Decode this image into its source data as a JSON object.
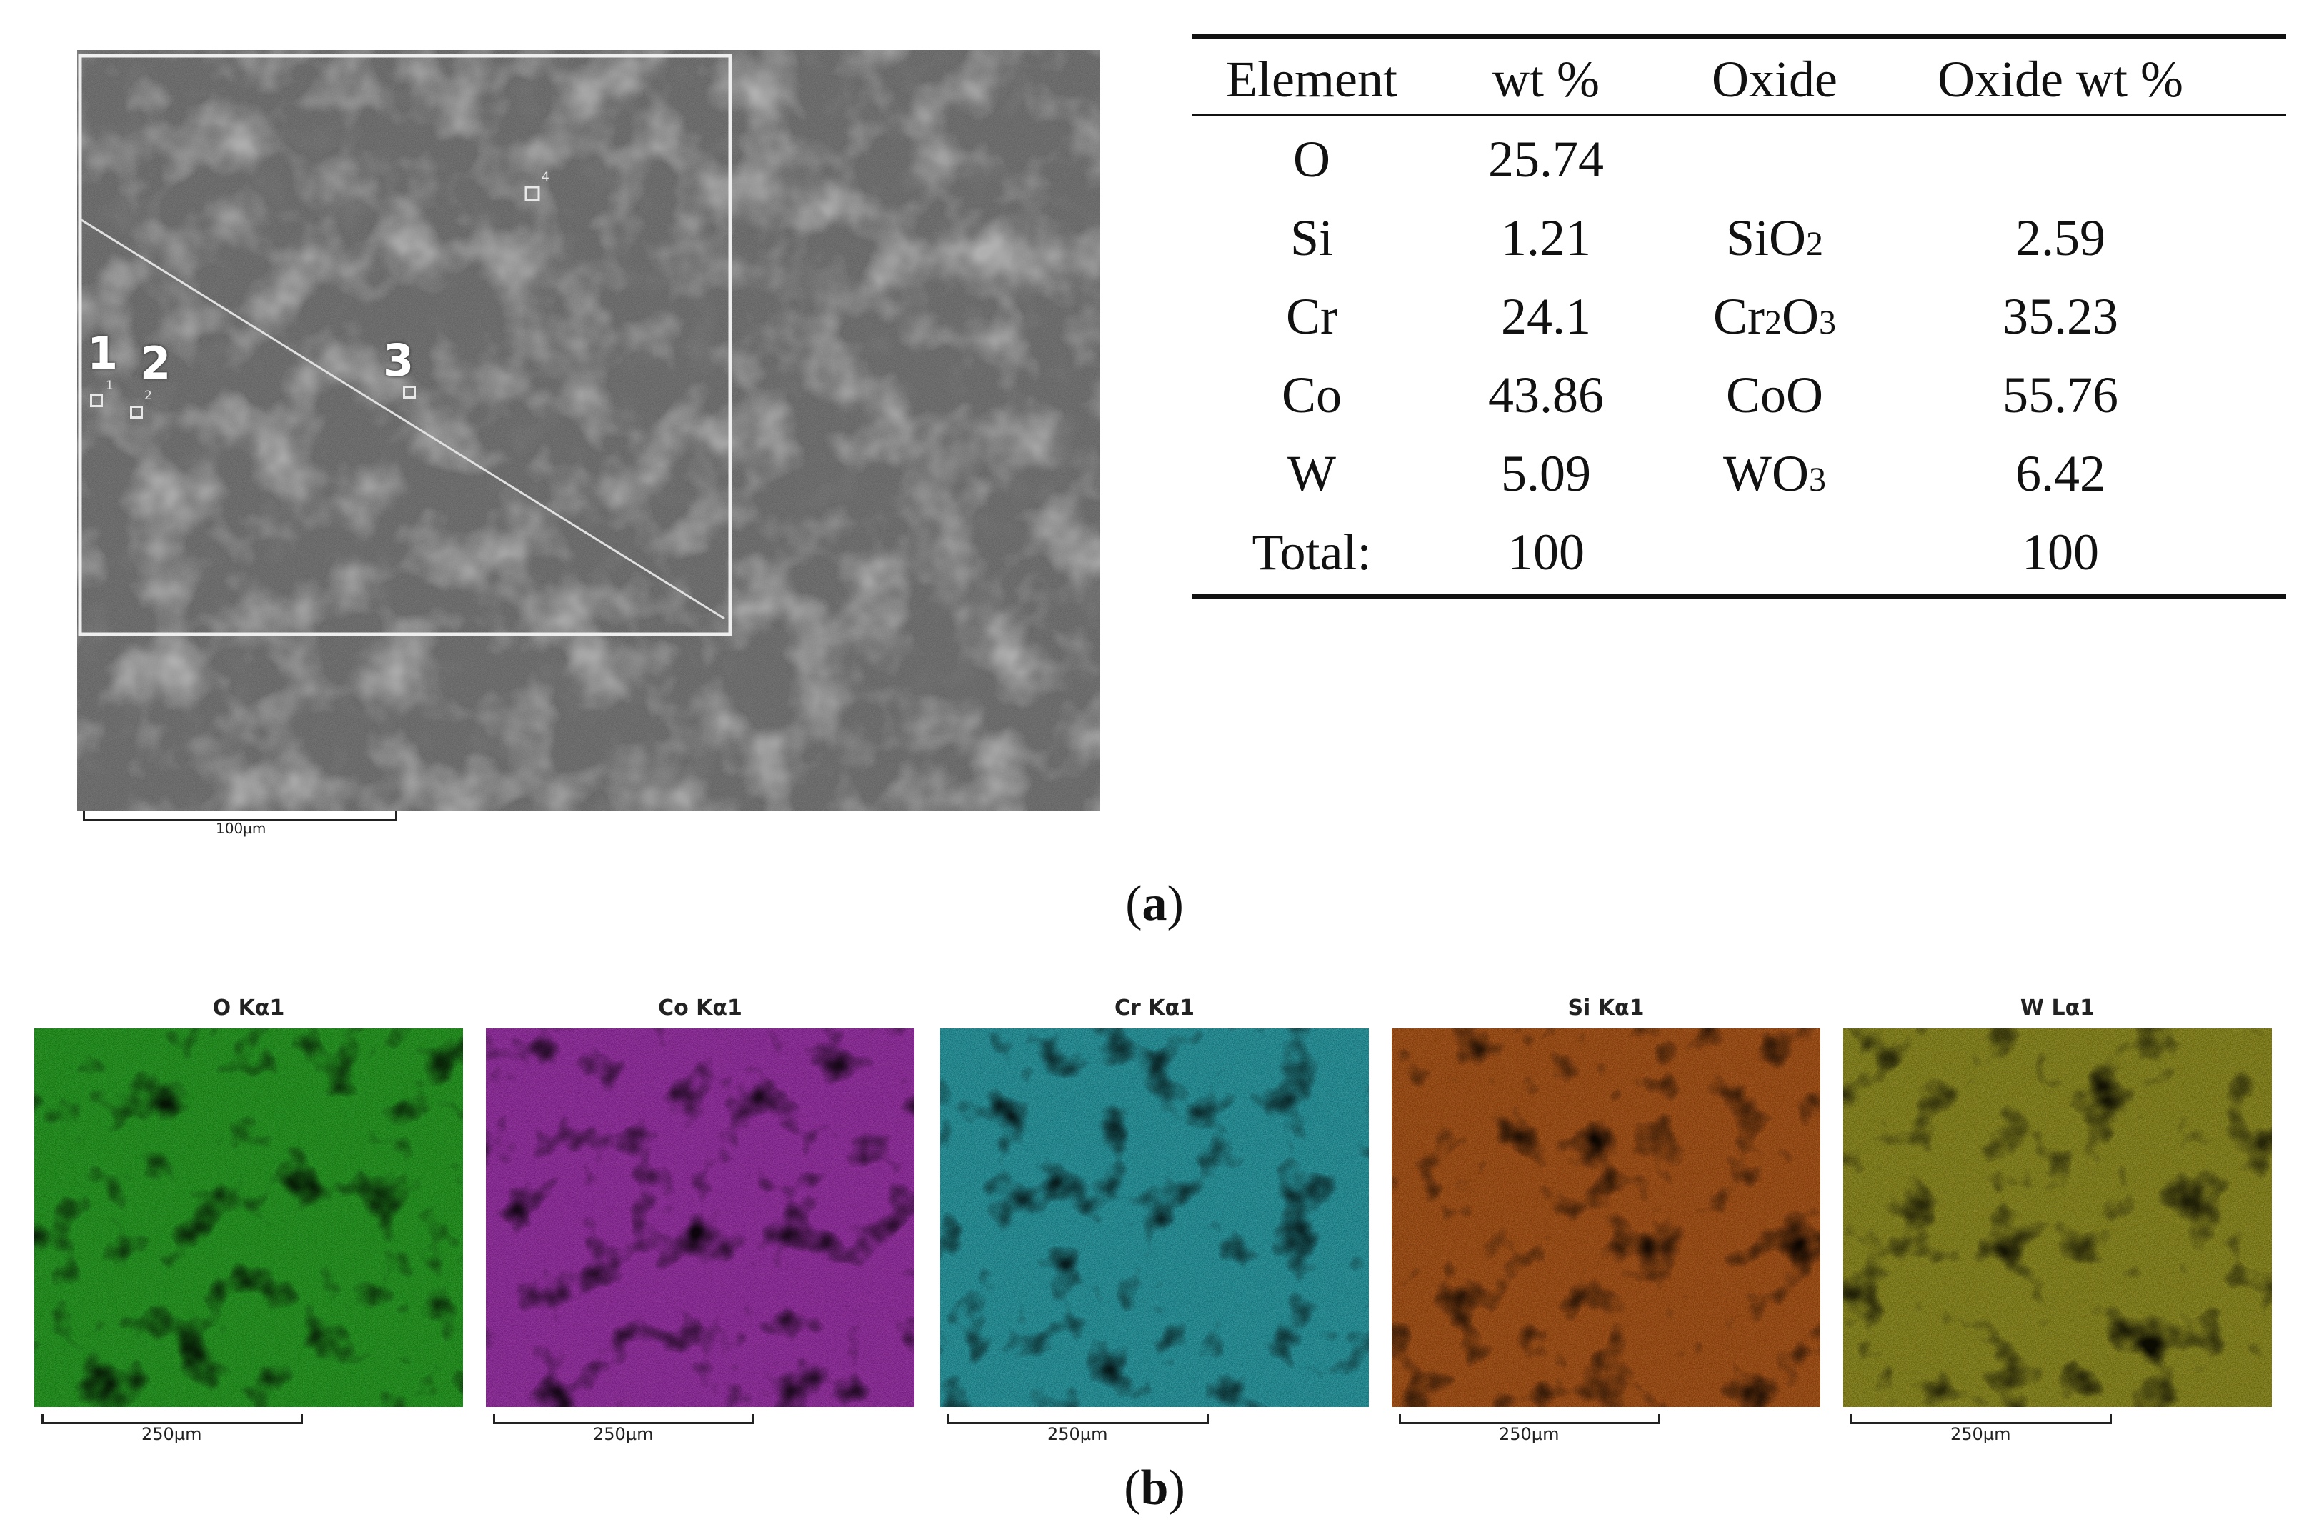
{
  "panel_a": {
    "caption_label": "a",
    "sem_image": {
      "point_labels": [
        "1",
        "2",
        "3"
      ],
      "point_box_numbers": [
        "1",
        "2",
        "4"
      ],
      "scale_bar": "100µm"
    },
    "table": {
      "headers": [
        "Element",
        "wt %",
        "Oxide",
        "Oxide wt %"
      ],
      "rows": [
        {
          "element": "O",
          "wt": "25.74",
          "oxide": "",
          "oxide_main": "",
          "oxide_sub1": "",
          "oxide_mid": "",
          "oxide_sub2": "",
          "oxide_wt": ""
        },
        {
          "element": "Si",
          "wt": "1.21",
          "oxide": "SiO2",
          "oxide_main": "SiO",
          "oxide_sub1": "2",
          "oxide_mid": "",
          "oxide_sub2": "",
          "oxide_wt": "2.59"
        },
        {
          "element": "Cr",
          "wt": "24.1",
          "oxide": "Cr2O3",
          "oxide_main": "Cr",
          "oxide_sub1": "2",
          "oxide_mid": "O",
          "oxide_sub2": "3",
          "oxide_wt": "35.23"
        },
        {
          "element": "Co",
          "wt": "43.86",
          "oxide": "CoO",
          "oxide_main": "CoO",
          "oxide_sub1": "",
          "oxide_mid": "",
          "oxide_sub2": "",
          "oxide_wt": "55.76"
        },
        {
          "element": "W",
          "wt": "5.09",
          "oxide": "WO3",
          "oxide_main": "WO",
          "oxide_sub1": "3",
          "oxide_mid": "",
          "oxide_sub2": "",
          "oxide_wt": "6.42"
        },
        {
          "element": "Total:",
          "wt": "100",
          "oxide": "",
          "oxide_main": "",
          "oxide_sub1": "",
          "oxide_mid": "",
          "oxide_sub2": "",
          "oxide_wt": "100"
        }
      ]
    }
  },
  "panel_b": {
    "caption_label": "b",
    "maps": [
      {
        "title": "O Kα1",
        "color": "#2fb82a",
        "dark": "#1a5e16",
        "scale_bar": "250µm"
      },
      {
        "title": "Co Kα1",
        "color": "#b53bc4",
        "dark": "#8a1f9a",
        "scale_bar": "250µm"
      },
      {
        "title": "Cr Kα1",
        "color": "#33b7c0",
        "dark": "#155a5e",
        "scale_bar": "250µm"
      },
      {
        "title": "Si Kα1",
        "color": "#c8641e",
        "dark": "#6e3510",
        "scale_bar": "250µm"
      },
      {
        "title": "W Lα1",
        "color": "#a8a528",
        "dark": "#2a2a10",
        "scale_bar": "250µm"
      }
    ]
  }
}
